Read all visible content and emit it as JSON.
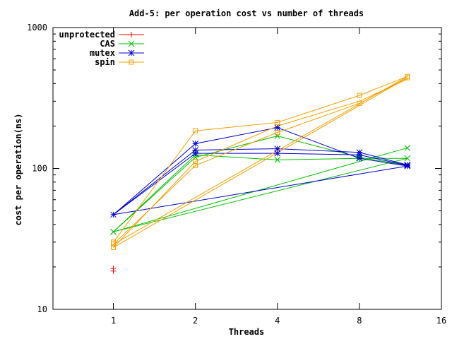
{
  "chart_data": {
    "type": "line",
    "title": "Add-5: per operation cost vs number of threads",
    "xlabel": "Threads",
    "ylabel": "cost per operation(ns)",
    "x_scale": "log2",
    "y_scale": "log10",
    "xlim": [
      0.6,
      16
    ],
    "ylim": [
      10,
      1000
    ],
    "x_ticks": [
      1,
      2,
      4,
      8,
      16
    ],
    "y_ticks": [
      10,
      100,
      1000
    ],
    "grid": false,
    "legend_position": "top-left",
    "series": [
      {
        "name": "unprotected",
        "color": "#ff0000",
        "marker": "plus",
        "points": [
          [
            1,
            19.5
          ],
          [
            1,
            18.7
          ]
        ],
        "lines": []
      },
      {
        "name": "CAS",
        "color": "#00c000",
        "marker": "x",
        "points": [
          [
            1,
            35.5
          ],
          [
            2,
            120
          ],
          [
            4,
            170
          ],
          [
            8,
            120
          ],
          [
            12,
            140
          ],
          [
            2,
            125
          ],
          [
            4,
            115
          ],
          [
            8,
            118
          ],
          [
            12,
            118
          ],
          [
            1,
            35.5
          ]
        ],
        "lines": [
          [
            [
              1,
              35.5
            ],
            [
              2,
              120
            ],
            [
              4,
              170
            ],
            [
              8,
              120
            ],
            [
              12,
              105
            ]
          ],
          [
            [
              1,
              35.5
            ],
            [
              2,
              125
            ],
            [
              4,
              115
            ],
            [
              8,
              118
            ],
            [
              12,
              118
            ]
          ],
          [
            [
              1,
              35.5
            ],
            [
              12,
              140
            ]
          ],
          [
            [
              1,
              35.5
            ],
            [
              12,
              118
            ]
          ]
        ]
      },
      {
        "name": "mutex",
        "color": "#0000d0",
        "marker": "star",
        "points": [
          [
            1,
            47
          ],
          [
            2,
            150
          ],
          [
            4,
            195
          ],
          [
            8,
            118
          ],
          [
            12,
            104
          ],
          [
            2,
            135
          ],
          [
            4,
            138
          ],
          [
            8,
            130
          ],
          [
            12,
            106
          ],
          [
            2,
            128
          ],
          [
            4,
            128
          ],
          [
            8,
            125
          ],
          [
            12,
            105
          ]
        ],
        "lines": [
          [
            [
              1,
              47
            ],
            [
              2,
              150
            ],
            [
              4,
              195
            ],
            [
              8,
              118
            ],
            [
              12,
              104
            ]
          ],
          [
            [
              1,
              47
            ],
            [
              2,
              135
            ],
            [
              4,
              138
            ],
            [
              8,
              130
            ],
            [
              12,
              106
            ]
          ],
          [
            [
              1,
              47
            ],
            [
              2,
              128
            ],
            [
              4,
              128
            ],
            [
              8,
              125
            ],
            [
              12,
              105
            ]
          ],
          [
            [
              1,
              47
            ],
            [
              12,
              104
            ]
          ]
        ]
      },
      {
        "name": "spin",
        "color": "#f0a000",
        "marker": "square",
        "points": [
          [
            1,
            30
          ],
          [
            2,
            185
          ],
          [
            4,
            212
          ],
          [
            8,
            330
          ],
          [
            12,
            450
          ],
          [
            1,
            29
          ],
          [
            2,
            105
          ],
          [
            4,
            180
          ],
          [
            8,
            290
          ],
          [
            12,
            440
          ],
          [
            1,
            27.5
          ],
          [
            2,
            112
          ]
        ],
        "lines": [
          [
            [
              1,
              30
            ],
            [
              2,
              185
            ],
            [
              4,
              212
            ],
            [
              8,
              330
            ],
            [
              12,
              450
            ]
          ],
          [
            [
              1,
              29
            ],
            [
              2,
              105
            ],
            [
              4,
              180
            ],
            [
              8,
              290
            ],
            [
              12,
              440
            ]
          ],
          [
            [
              1,
              27.5
            ],
            [
              2,
              112
            ],
            [
              4,
              200
            ],
            [
              8,
              300
            ],
            [
              12,
              430
            ]
          ],
          [
            [
              1,
              29
            ],
            [
              12,
              450
            ]
          ],
          [
            [
              1,
              27.5
            ],
            [
              12,
              440
            ]
          ]
        ]
      }
    ]
  }
}
